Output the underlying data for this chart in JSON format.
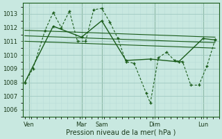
{
  "xlabel": "Pression niveau de la mer( hPa )",
  "background_color": "#c8e8e0",
  "grid_major_color": "#a0c8c0",
  "grid_minor_color": "#b8dcd8",
  "line_color": "#1a5c1a",
  "ylim": [
    1005.5,
    1013.8
  ],
  "xlim": [
    -0.5,
    48
  ],
  "yticks": [
    1006,
    1007,
    1008,
    1009,
    1010,
    1011,
    1012,
    1013
  ],
  "day_labels": [
    "Ven",
    "Mar",
    "Sam",
    "Dim",
    "Lun"
  ],
  "day_tick_pos": [
    1,
    14,
    19,
    32,
    44
  ],
  "vline_pos": [
    1,
    14,
    19,
    32,
    44
  ],
  "jagged_x": [
    0,
    2,
    5,
    7,
    9,
    11,
    13,
    15,
    17,
    19,
    21,
    23,
    25,
    27,
    30,
    31,
    33,
    35,
    37,
    39,
    41,
    43,
    45,
    47
  ],
  "jagged_y": [
    1008.0,
    1009.0,
    1011.8,
    1013.1,
    1012.0,
    1013.2,
    1011.0,
    1011.0,
    1013.3,
    1013.4,
    1012.4,
    1011.2,
    1009.5,
    1009.4,
    1007.2,
    1006.5,
    1009.8,
    1010.2,
    1009.6,
    1009.5,
    1007.8,
    1007.8,
    1009.2,
    1011.1
  ],
  "solid_x": [
    0,
    7,
    14,
    19,
    25,
    31,
    38,
    44,
    47
  ],
  "solid_y": [
    1008.0,
    1012.1,
    1011.3,
    1012.5,
    1009.6,
    1009.7,
    1009.5,
    1011.2,
    1011.1
  ],
  "trend_lines": [
    [
      0,
      1011.8,
      47,
      1011.3
    ],
    [
      0,
      1011.4,
      47,
      1010.9
    ],
    [
      0,
      1011.0,
      47,
      1010.5
    ]
  ]
}
